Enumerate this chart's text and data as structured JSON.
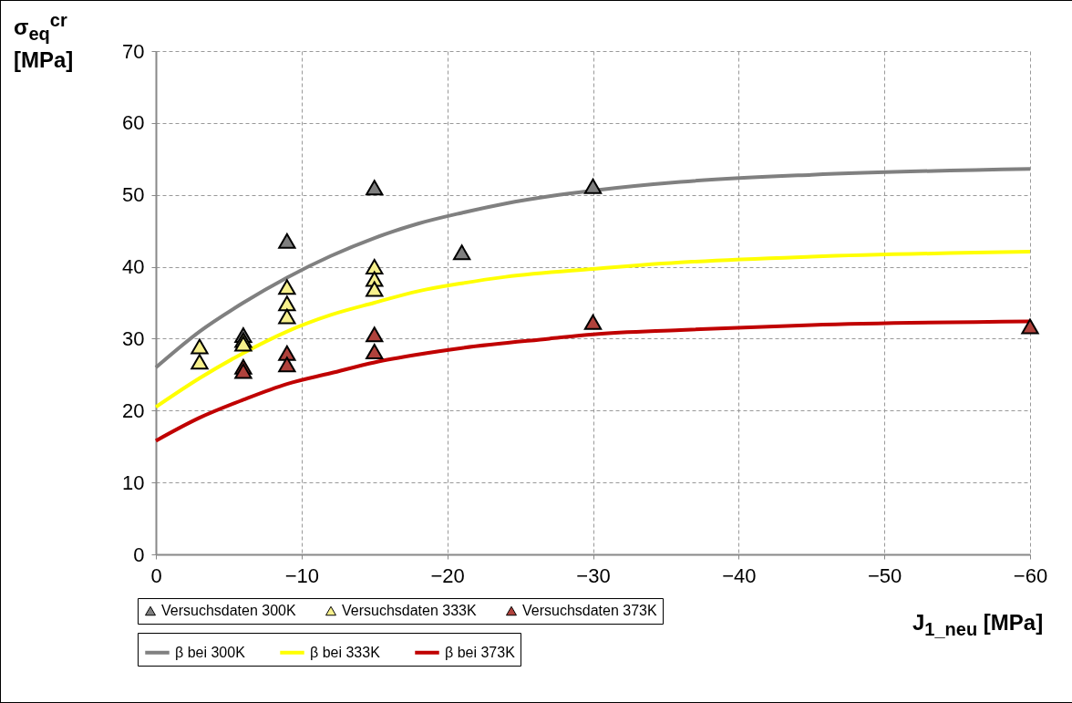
{
  "chart_data": {
    "type": "scatter",
    "xlabel": "J$_{1_neu}$ [MPa]",
    "ylabel": "σ$_{eq}$$^{cr}$ [MPa]",
    "xlim": [
      0,
      -60
    ],
    "xticks": [
      0,
      -10,
      -20,
      -30,
      -40,
      -50,
      -60
    ],
    "ylim": [
      0,
      70
    ],
    "yticks": [
      0,
      10,
      20,
      30,
      40,
      50,
      60,
      70
    ],
    "grid": true,
    "legend": "bottom",
    "series": [
      {
        "name": "Versuchsdaten 300K",
        "marker": "triangle",
        "color": "#7f7f7f",
        "x": [
          -6,
          -9,
          -15,
          -21,
          -30
        ],
        "values": [
          30.5,
          43.6,
          51.0,
          42.0,
          51.2
        ]
      },
      {
        "name": "Versuchsdaten 333K",
        "marker": "triangle",
        "color": "#f7f08c",
        "x": [
          -3,
          -3,
          -6,
          -6,
          -9,
          -9,
          -9,
          -15,
          -15,
          -15
        ],
        "values": [
          28.9,
          26.8,
          29.8,
          29.3,
          37.2,
          34.9,
          33.1,
          40.0,
          38.3,
          36.9
        ]
      },
      {
        "name": "Versuchsdaten 373K",
        "marker": "triangle",
        "color": "#b0423c",
        "x": [
          -6,
          -6,
          -9,
          -9,
          -15,
          -15,
          -30,
          -60
        ],
        "values": [
          26.1,
          25.5,
          28.0,
          26.4,
          30.6,
          28.2,
          32.3,
          31.7
        ]
      },
      {
        "name": "β bei 300K",
        "type": "line",
        "line_style": "solid",
        "color": "#808080",
        "x": [
          0,
          -3,
          -6,
          -9,
          -12,
          -15,
          -18,
          -21,
          -24,
          -27,
          -30,
          -36,
          -45,
          -60
        ],
        "values": [
          26.0,
          31.0,
          35.0,
          38.5,
          41.5,
          44.0,
          46.0,
          47.5,
          48.8,
          49.8,
          50.6,
          51.8,
          52.8,
          53.6
        ]
      },
      {
        "name": "β bei 333K",
        "type": "line",
        "line_style": "solid",
        "color": "#ffff00",
        "x": [
          0,
          -3,
          -6,
          -9,
          -12,
          -15,
          -18,
          -21,
          -24,
          -30,
          -36,
          -45,
          -60
        ],
        "values": [
          20.5,
          24.5,
          28.0,
          31.0,
          33.3,
          35.0,
          36.6,
          37.7,
          38.6,
          39.7,
          40.6,
          41.4,
          42.1
        ]
      },
      {
        "name": "β bei 373K",
        "type": "line",
        "line_style": "solid",
        "color": "#c00000",
        "x": [
          0,
          -3,
          -6,
          -9,
          -12,
          -15,
          -18,
          -21,
          -27,
          -30,
          -36,
          -45,
          -60
        ],
        "values": [
          15.8,
          19.0,
          21.5,
          23.7,
          25.2,
          26.7,
          27.8,
          28.7,
          30.0,
          30.6,
          31.2,
          31.9,
          32.4
        ]
      }
    ]
  }
}
